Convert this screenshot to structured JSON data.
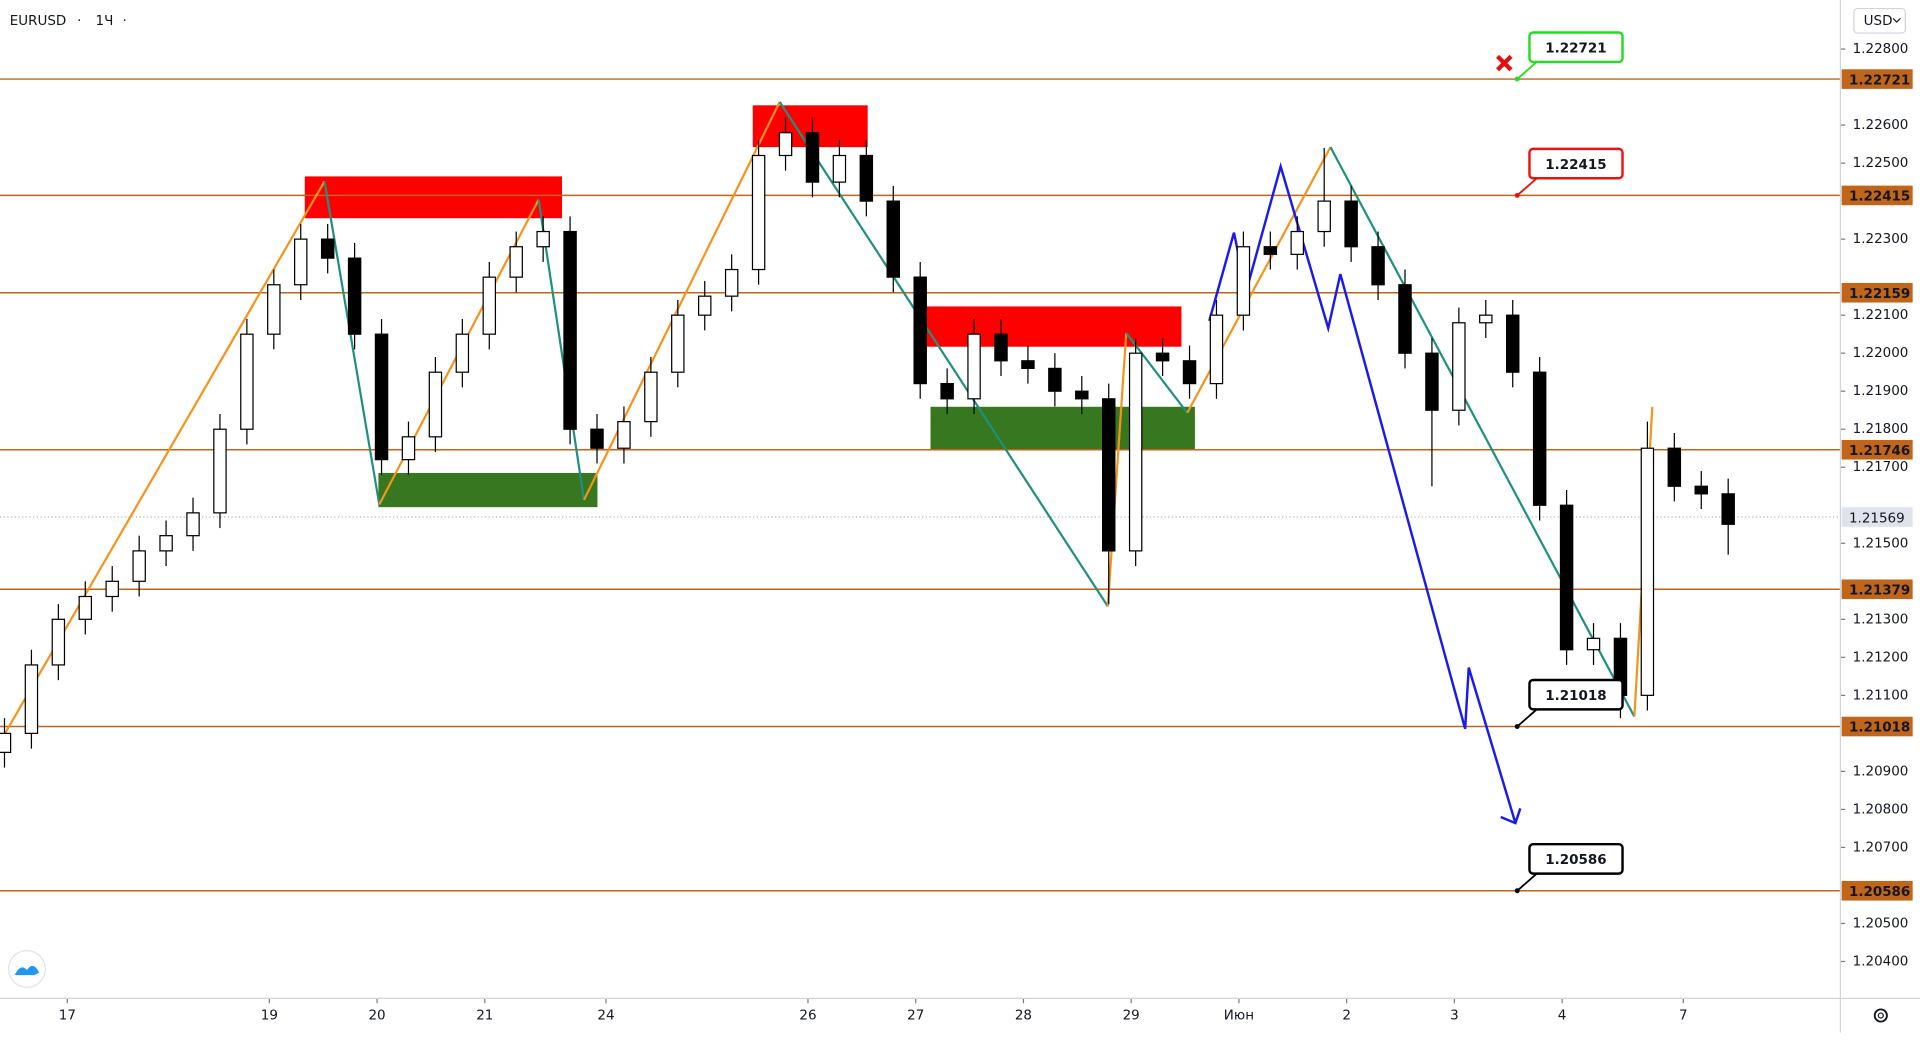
{
  "chart_data": {
    "type": "candlestick",
    "symbol": "EURUSD",
    "interval": "1Ч",
    "currency": "USD",
    "up_color": "#ffffff",
    "down_color": "#000000",
    "xlim": [
      0,
      410
    ],
    "ylim": [
      1.20303,
      1.22929
    ],
    "xticks": [
      {
        "value": 15,
        "label": "17"
      },
      {
        "value": 60,
        "label": "19"
      },
      {
        "value": 84,
        "label": "20"
      },
      {
        "value": 108,
        "label": "21"
      },
      {
        "value": 135,
        "label": "24"
      },
      {
        "value": 180,
        "label": "26"
      },
      {
        "value": 204,
        "label": "27"
      },
      {
        "value": 228,
        "label": "28"
      },
      {
        "value": 252,
        "label": "29"
      },
      {
        "value": 276,
        "label": "Июн"
      },
      {
        "value": 300,
        "label": "2"
      },
      {
        "value": 324,
        "label": "3"
      },
      {
        "value": 348,
        "label": "4"
      },
      {
        "value": 375,
        "label": "7"
      }
    ],
    "yticks": [
      {
        "value": 1.228,
        "label": "1.22800"
      },
      {
        "value": 1.226,
        "label": "1.22600"
      },
      {
        "value": 1.225,
        "label": "1.22500"
      },
      {
        "value": 1.223,
        "label": "1.22300"
      },
      {
        "value": 1.221,
        "label": "1.22100"
      },
      {
        "value": 1.22,
        "label": "1.22000"
      },
      {
        "value": 1.219,
        "label": "1.21900"
      },
      {
        "value": 1.218,
        "label": "1.21800"
      },
      {
        "value": 1.217,
        "label": "1.21700"
      },
      {
        "value": 1.215,
        "label": "1.21500"
      },
      {
        "value": 1.213,
        "label": "1.21300"
      },
      {
        "value": 1.212,
        "label": "1.21200"
      },
      {
        "value": 1.211,
        "label": "1.21100"
      },
      {
        "value": 1.209,
        "label": "1.20900"
      },
      {
        "value": 1.208,
        "label": "1.20800"
      },
      {
        "value": 1.207,
        "label": "1.20700"
      },
      {
        "value": 1.205,
        "label": "1.20500"
      },
      {
        "value": 1.204,
        "label": "1.20400"
      }
    ],
    "x": [
      1,
      7,
      13,
      19,
      25,
      31,
      37,
      43,
      49,
      55,
      61,
      67,
      73,
      79,
      85,
      91,
      97,
      103,
      109,
      115,
      121,
      127,
      133,
      139,
      145,
      151,
      157,
      163,
      169,
      175,
      181,
      187,
      193,
      199,
      205,
      211,
      217,
      223,
      229,
      235,
      241,
      247,
      253,
      259,
      265,
      271,
      277,
      283,
      289,
      295,
      301,
      307,
      313,
      319,
      325,
      331,
      337,
      343,
      349,
      355,
      361,
      367,
      373,
      379,
      385
    ],
    "open": [
      1.2095,
      1.21,
      1.2118,
      1.213,
      1.2136,
      1.214,
      1.2148,
      1.2152,
      1.2158,
      1.218,
      1.2205,
      1.2218,
      1.223,
      1.2225,
      1.2205,
      1.2172,
      1.2178,
      1.2195,
      1.2205,
      1.222,
      1.2228,
      1.2232,
      1.218,
      1.2175,
      1.2182,
      1.2195,
      1.221,
      1.2215,
      1.2222,
      1.2252,
      1.2258,
      1.2245,
      1.2252,
      1.224,
      1.222,
      1.2192,
      1.2188,
      1.2205,
      1.2198,
      1.2196,
      1.219,
      1.2188,
      1.2148,
      1.22,
      1.2198,
      1.2192,
      1.221,
      1.2228,
      1.2226,
      1.2232,
      1.224,
      1.2228,
      1.2218,
      1.22,
      1.2185,
      1.2208,
      1.221,
      1.2195,
      1.216,
      1.2122,
      1.2125,
      1.211,
      1.2175,
      1.2165,
      1.2163
    ],
    "high": [
      1.2104,
      1.2122,
      1.2134,
      1.214,
      1.2144,
      1.2152,
      1.2156,
      1.2162,
      1.2184,
      1.2209,
      1.2222,
      1.2234,
      1.2234,
      1.2229,
      1.2209,
      1.2182,
      1.2199,
      1.2209,
      1.2224,
      1.2232,
      1.2236,
      1.2236,
      1.2184,
      1.2186,
      1.2199,
      1.2214,
      1.2219,
      1.2226,
      1.2256,
      1.2262,
      1.2262,
      1.2256,
      1.2256,
      1.2244,
      1.2224,
      1.2196,
      1.2209,
      1.2209,
      1.2202,
      1.22,
      1.2194,
      1.2192,
      1.2204,
      1.2204,
      1.2202,
      1.2214,
      1.2232,
      1.2232,
      1.2236,
      1.2254,
      1.2244,
      1.2232,
      1.2222,
      1.2204,
      1.2212,
      1.2214,
      1.2214,
      1.2199,
      1.2164,
      1.2129,
      1.2129,
      1.2182,
      1.2179,
      1.2169,
      1.2167
    ],
    "low": [
      1.2091,
      1.2096,
      1.2114,
      1.2126,
      1.2132,
      1.2136,
      1.2144,
      1.2148,
      1.2154,
      1.2176,
      1.2201,
      1.2214,
      1.2221,
      1.2201,
      1.2168,
      1.2168,
      1.2174,
      1.2191,
      1.2201,
      1.2216,
      1.2224,
      1.2176,
      1.2171,
      1.2171,
      1.2178,
      1.2191,
      1.2206,
      1.2211,
      1.2218,
      1.2248,
      1.2241,
      1.2241,
      1.2236,
      1.2216,
      1.2188,
      1.2184,
      1.2184,
      1.2194,
      1.2192,
      1.2186,
      1.2184,
      1.2134,
      1.2144,
      1.2194,
      1.2188,
      1.2188,
      1.2206,
      1.2222,
      1.2222,
      1.2228,
      1.2224,
      1.2214,
      1.2196,
      1.2165,
      1.2181,
      1.2204,
      1.2191,
      1.2156,
      1.2118,
      1.2118,
      1.2104,
      1.2106,
      1.2161,
      1.2159,
      1.2147
    ],
    "close": [
      1.21,
      1.2118,
      1.213,
      1.2136,
      1.214,
      1.2148,
      1.2152,
      1.2158,
      1.218,
      1.2205,
      1.2218,
      1.223,
      1.2225,
      1.2205,
      1.2172,
      1.2178,
      1.2195,
      1.2205,
      1.222,
      1.2228,
      1.2232,
      1.218,
      1.2175,
      1.2182,
      1.2195,
      1.221,
      1.2215,
      1.2222,
      1.2252,
      1.2258,
      1.2245,
      1.2252,
      1.224,
      1.222,
      1.2192,
      1.2188,
      1.2205,
      1.2198,
      1.2196,
      1.219,
      1.2188,
      1.2148,
      1.22,
      1.2198,
      1.2192,
      1.221,
      1.2228,
      1.2226,
      1.2232,
      1.224,
      1.2228,
      1.2218,
      1.22,
      1.2185,
      1.2208,
      1.221,
      1.2195,
      1.216,
      1.2122,
      1.2125,
      1.211,
      1.2175,
      1.2165,
      1.2163,
      1.2155
    ],
    "last_price": 1.21569,
    "levels": [
      1.22721,
      1.22415,
      1.22159,
      1.21746,
      1.21379,
      1.21018,
      1.20586
    ],
    "level_color": "#c0651a",
    "callouts": [
      {
        "level": 0,
        "color": "#22dd22"
      },
      {
        "level": 1,
        "color": "#ee1111"
      },
      {
        "level": 5,
        "color": "#000000"
      },
      {
        "level": 6,
        "color": "#000000"
      }
    ],
    "callout_x": 338,
    "zones": [
      {
        "x": [
          67.9,
          125.2
        ],
        "y": [
          1.22355,
          1.22465
        ],
        "color": "#ff0000"
      },
      {
        "x": [
          167.7,
          193.3
        ],
        "y": [
          1.22542,
          1.22652
        ],
        "color": "#ff0000"
      },
      {
        "x": [
          205.9,
          263.2
        ],
        "y": [
          1.22017,
          1.22123
        ],
        "color": "#ff0000"
      },
      {
        "x": [
          84.3,
          133.1
        ],
        "y": [
          1.21595,
          1.21685
        ],
        "color": "#36771f"
      },
      {
        "x": [
          207.3,
          266.2
        ],
        "y": [
          1.21747,
          1.21859
        ],
        "color": "#36771f"
      }
    ],
    "zigzag": {
      "up_color": "#f7931a",
      "down_color": "#1f9080",
      "x": [
        0,
        72.3,
        84.5,
        120,
        130.1,
        173.7,
        246.8,
        250.9,
        264.5,
        296.4,
        364.1,
        368.1
      ],
      "y": [
        1.20977,
        1.22452,
        1.21602,
        1.22404,
        1.21614,
        1.22661,
        1.21334,
        1.22053,
        1.21843,
        1.22542,
        1.21044,
        1.21859
      ]
    },
    "projection": {
      "color": "#1a1aee",
      "x": [
        269.4,
        274.9,
        277.6,
        285.3,
        295.9,
        298.6,
        326.4,
        327.2,
        337.6
      ],
      "y": [
        1.22085,
        1.22317,
        1.22162,
        1.22491,
        1.22066,
        1.22208,
        1.21012,
        1.21173,
        1.20764
      ]
    }
  }
}
